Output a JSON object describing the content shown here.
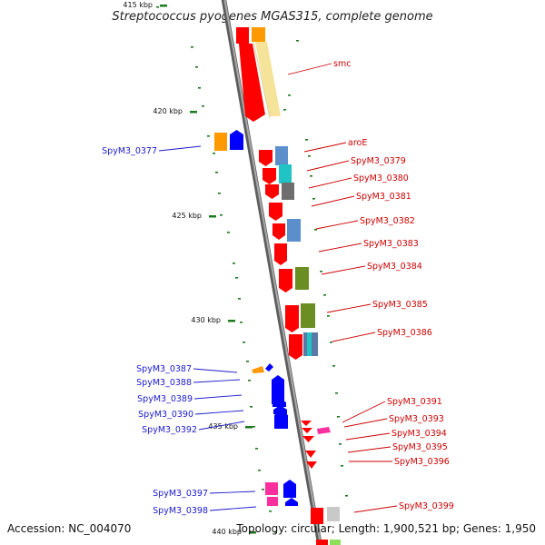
{
  "title": "Streptococcus pyogenes MGAS315, complete genome",
  "footer": {
    "accession": "Accession: NC_004070",
    "topology": "Topology: circular; Length: 1,900,521 bp; Genes: 1,950"
  },
  "colors": {
    "forward": "#ff0000",
    "reverse": "#0000ff",
    "label_forward": "#cc0000",
    "label_reverse": "#1a1acc",
    "backbone": "#8c8c8c",
    "tick": "#1e7a1e"
  },
  "ticks": [
    {
      "label": "415 kbp"
    },
    {
      "label": "420 kbp"
    },
    {
      "label": "425 kbp"
    },
    {
      "label": "430 kbp"
    },
    {
      "label": "435 kbp"
    },
    {
      "label": "440 kbp"
    }
  ],
  "forward_labels": [
    {
      "text": "smc"
    },
    {
      "text": "aroE"
    },
    {
      "text": "SpyM3_0379"
    },
    {
      "text": "SpyM3_0380"
    },
    {
      "text": "SpyM3_0381"
    },
    {
      "text": "SpyM3_0382"
    },
    {
      "text": "SpyM3_0383"
    },
    {
      "text": "SpyM3_0384"
    },
    {
      "text": "SpyM3_0385"
    },
    {
      "text": "SpyM3_0386"
    },
    {
      "text": "SpyM3_0391"
    },
    {
      "text": "SpyM3_0393"
    },
    {
      "text": "SpyM3_0394"
    },
    {
      "text": "SpyM3_0395"
    },
    {
      "text": "SpyM3_0396"
    },
    {
      "text": "SpyM3_0399"
    }
  ],
  "reverse_labels": [
    {
      "text": "SpyM3_0377"
    },
    {
      "text": "SpyM3_0387"
    },
    {
      "text": "SpyM3_0388"
    },
    {
      "text": "SpyM3_0389"
    },
    {
      "text": "SpyM3_0390"
    },
    {
      "text": "SpyM3_0392"
    },
    {
      "text": "SpyM3_0397"
    },
    {
      "text": "SpyM3_0398"
    }
  ]
}
